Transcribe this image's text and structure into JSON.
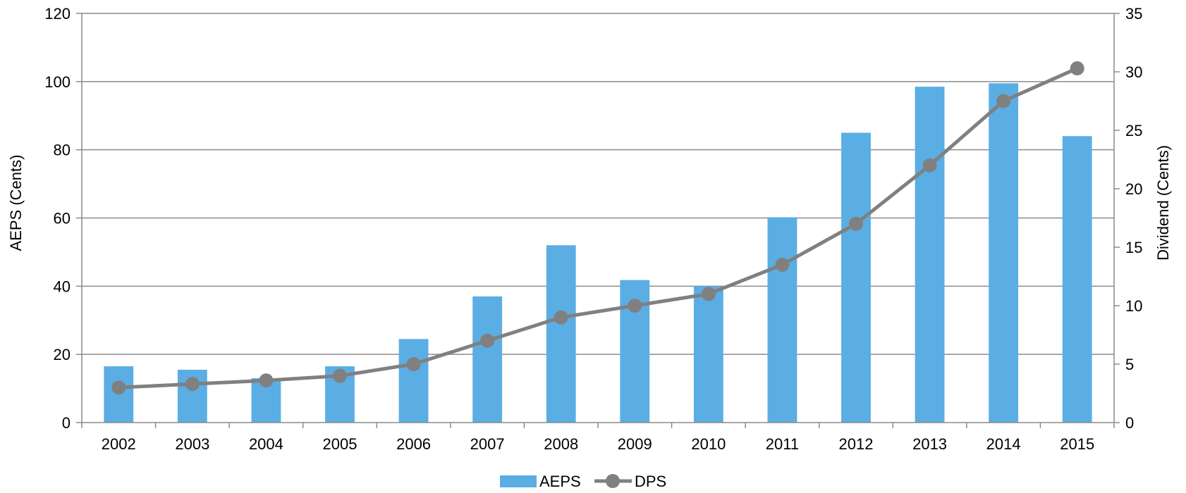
{
  "chart_data": {
    "type": "bar",
    "categories": [
      "2002",
      "2003",
      "2004",
      "2005",
      "2006",
      "2007",
      "2008",
      "2009",
      "2010",
      "2011",
      "2012",
      "2013",
      "2014",
      "2015"
    ],
    "series": [
      {
        "name": "AEPS",
        "type": "bar",
        "axis": "left",
        "color": "#5aaee3",
        "values": [
          16.5,
          15.5,
          13.0,
          16.5,
          24.5,
          37.0,
          52.0,
          41.8,
          40.0,
          60.2,
          85.0,
          98.5,
          99.5,
          84.0
        ]
      },
      {
        "name": "DPS",
        "type": "line",
        "axis": "right",
        "color": "#808080",
        "values": [
          3.0,
          3.3,
          3.6,
          4.0,
          5.0,
          7.0,
          9.0,
          10.0,
          11.0,
          13.5,
          17.0,
          22.0,
          27.5,
          30.3
        ]
      }
    ],
    "ylabel": "AEPS (Cents)",
    "y2label": "Dividend (Cents)",
    "ylim": [
      0,
      120
    ],
    "y2lim": [
      0,
      35
    ],
    "yticks": [
      "0",
      "20",
      "40",
      "60",
      "80",
      "100",
      "120"
    ],
    "y2ticks": [
      "0",
      "5",
      "10",
      "15",
      "20",
      "25",
      "30",
      "35"
    ],
    "grid": true,
    "legend_position": "bottom-center",
    "gridline_color": "#8c8c8c"
  }
}
